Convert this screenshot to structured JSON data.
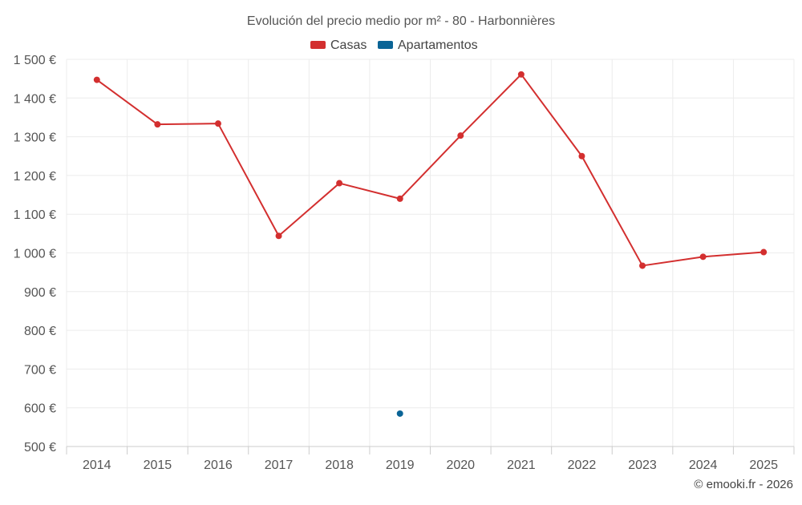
{
  "chart_data": {
    "type": "line",
    "title": "Evolución del precio medio por m² - 80 - Harbonnières",
    "xlabel": "",
    "ylabel": "",
    "categories": [
      "2014",
      "2015",
      "2016",
      "2017",
      "2018",
      "2019",
      "2020",
      "2021",
      "2022",
      "2023",
      "2024",
      "2025"
    ],
    "ylim": [
      500,
      1500
    ],
    "yticks": [
      500,
      600,
      700,
      800,
      900,
      1000,
      1100,
      1200,
      1300,
      1400,
      1500
    ],
    "ytick_labels": [
      "500 €",
      "600 €",
      "700 €",
      "800 €",
      "900 €",
      "1 000 €",
      "1 100 €",
      "1 200 €",
      "1 300 €",
      "1 400 €",
      "1 500 €"
    ],
    "grid": true,
    "legend_position": "top-center",
    "series": [
      {
        "name": "Casas",
        "color": "#d32f2f",
        "values": [
          1447,
          1332,
          1334,
          1044,
          1180,
          1140,
          1303,
          1461,
          1250,
          967,
          990,
          1002
        ]
      },
      {
        "name": "Apartamentos",
        "color": "#0a6496",
        "values": [
          null,
          null,
          null,
          null,
          null,
          585,
          null,
          null,
          null,
          null,
          null,
          null
        ]
      }
    ],
    "credit": "© emooki.fr - 2026"
  }
}
